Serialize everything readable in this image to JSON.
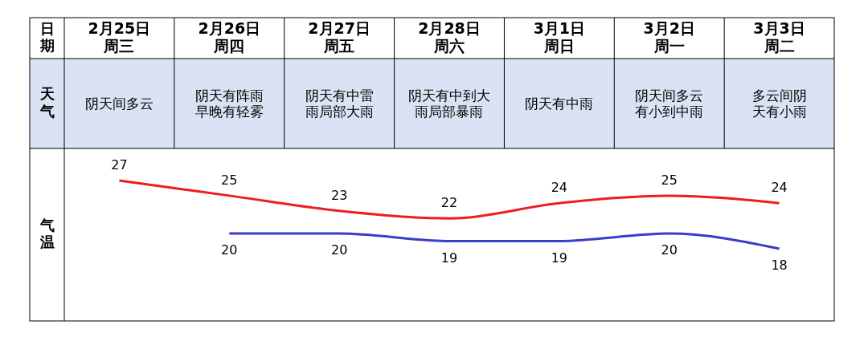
{
  "chart_data": {
    "type": "line",
    "ylabel": "气温",
    "categories": [
      "2月25日周三",
      "2月26日周四",
      "2月27日周五",
      "2月28日周六",
      "3月1日周日",
      "3月2日周一",
      "3月3日周二"
    ],
    "series": [
      {
        "color": "#ee1c1c",
        "values": [
          27,
          25,
          23,
          22,
          24,
          25,
          24
        ]
      },
      {
        "color": "#3b3bcc",
        "values": [
          null,
          20,
          20,
          19,
          19,
          20,
          18
        ]
      }
    ],
    "data_labels": true,
    "marker": "none",
    "annotations": [
      "日期",
      "天气",
      "阴天间多云",
      "阴天有阵雨早晚有轻雾",
      "阴天有中雷雨局部大雨",
      "阴天有中到大雨局部暴雨",
      "阴天有中雨",
      "阴天间多云有小到中雨",
      "多云间阴天有小雨"
    ]
  }
}
